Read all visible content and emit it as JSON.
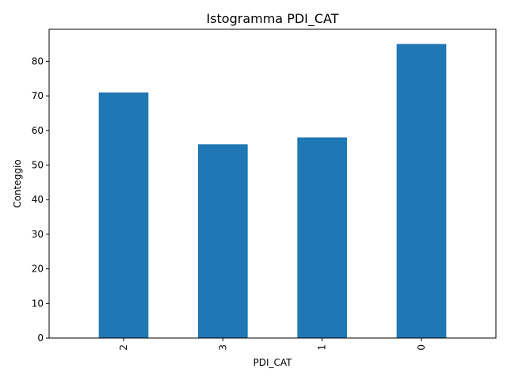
{
  "chart_data": {
    "type": "bar",
    "title": "Istogramma PDI_CAT",
    "xlabel": "PDI_CAT",
    "ylabel": "Conteggio",
    "categories": [
      "2",
      "3",
      "1",
      "0"
    ],
    "values": [
      71,
      56,
      58,
      85
    ],
    "ylim": [
      0,
      89.25
    ],
    "yticks": [
      0,
      10,
      20,
      30,
      40,
      50,
      60,
      70,
      80
    ],
    "bar_color": "#1f77b4",
    "grid": false,
    "legend": "none",
    "xtick_rotation": "vertical"
  }
}
